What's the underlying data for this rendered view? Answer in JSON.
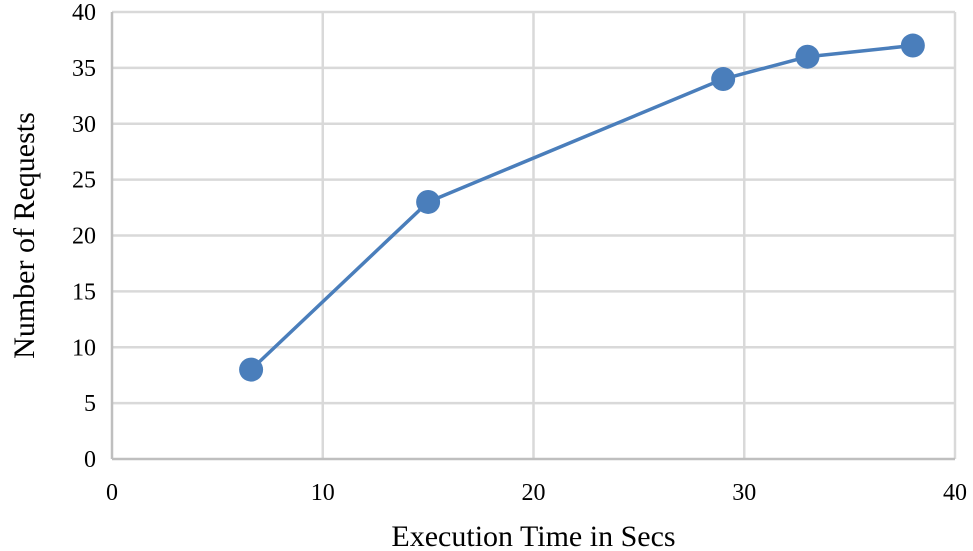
{
  "chart_data": {
    "type": "scatter",
    "title": "",
    "xlabel": "Execution Time in Secs",
    "ylabel": "Number of Requests",
    "xlim": [
      0,
      40
    ],
    "ylim": [
      0,
      40
    ],
    "xticks": [
      0,
      10,
      20,
      30,
      40
    ],
    "yticks": [
      0,
      5,
      10,
      15,
      20,
      25,
      30,
      35,
      40
    ],
    "grid": true,
    "lines_connected": true,
    "color": "#4a7ebb",
    "series": [
      {
        "x": [
          6.6,
          15,
          29,
          33,
          38
        ],
        "y": [
          8,
          23,
          34,
          36,
          37
        ]
      }
    ]
  }
}
